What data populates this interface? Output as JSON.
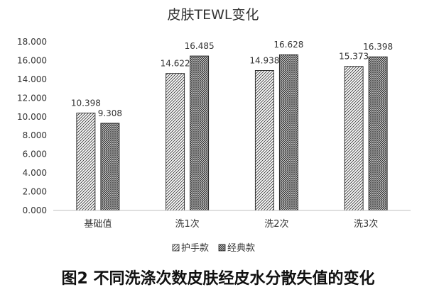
{
  "caption": "图2 不同洗涤次数皮肤经皮水分散失值的变化",
  "chart_data": {
    "type": "bar",
    "title": "皮肤TEWL变化",
    "xlabel": "",
    "ylabel": "",
    "categories": [
      "基础值",
      "洗1次",
      "洗2次",
      "洗3次"
    ],
    "series": [
      {
        "name": "护手款",
        "values": [
          10.398,
          14.622,
          14.938,
          15.373
        ],
        "pattern": "diagonal-hatch"
      },
      {
        "name": "经典款",
        "values": [
          9.308,
          16.485,
          16.628,
          16.398
        ],
        "pattern": "crosshatch"
      }
    ],
    "ylim": [
      0,
      18
    ],
    "ytick_step": 2,
    "ytick_labels": [
      "0.000",
      "2.000",
      "4.000",
      "6.000",
      "8.000",
      "10.000",
      "12.000",
      "14.000",
      "16.000",
      "18.000"
    ],
    "data_labels": true,
    "value_format_decimals": 3,
    "grid": false,
    "legend": "bottom",
    "colors": {
      "bar_fill": "#ffffff",
      "bar_stroke": "#222222",
      "hatch": "#333333",
      "axis": "#bfbfbf",
      "text": "#333333"
    }
  }
}
